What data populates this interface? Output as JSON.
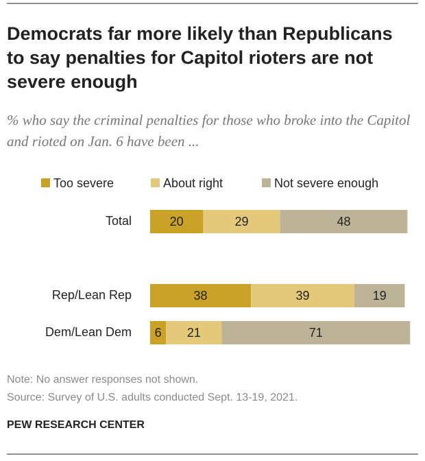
{
  "chart_data": {
    "type": "stacked-bar",
    "orientation": "horizontal",
    "title": "Democrats far more likely than Republicans to say penalties for Capitol rioters are not severe enough",
    "subtitle": "% who say the criminal penalties for those who broke into the Capitol and rioted on Jan. 6 have been ...",
    "categories": [
      "Total",
      "Rep/Lean Rep",
      "Dem/Lean Dem"
    ],
    "series": [
      {
        "name": "Too severe",
        "color": "#c9a227",
        "values": [
          20,
          38,
          6
        ]
      },
      {
        "name": "About right",
        "color": "#e5c97a",
        "values": [
          29,
          39,
          21
        ]
      },
      {
        "name": "Not severe enough",
        "color": "#bcb398",
        "values": [
          48,
          19,
          71
        ]
      }
    ],
    "note": "Note: No answer responses not shown.",
    "source": "Source: Survey of U.S. adults conducted Sept. 13-19, 2021.",
    "footer": "PEW RESEARCH CENTER"
  }
}
